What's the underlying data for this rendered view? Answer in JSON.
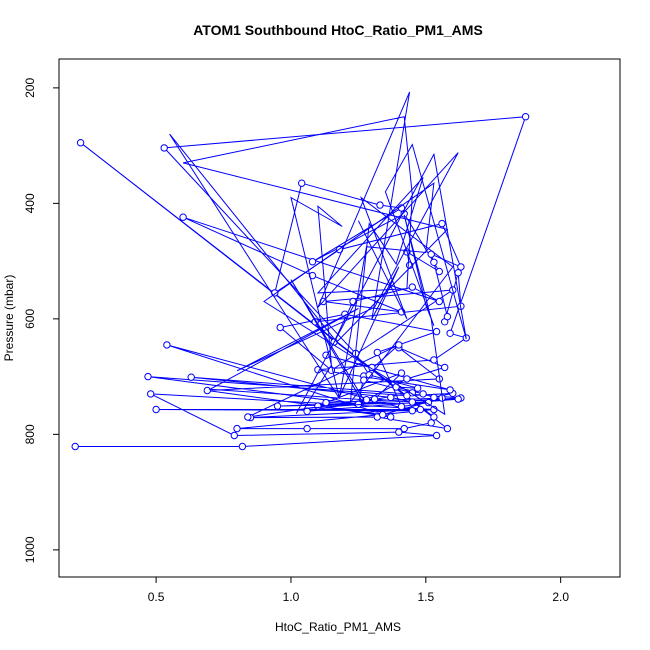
{
  "chart_data": {
    "type": "line",
    "title": "ATOM1 Southbound HtoC_Ratio_PM1_AMS",
    "xlabel": "HtoC_Ratio_PM1_AMS",
    "ylabel": "Pressure (mbar)",
    "xlim": [
      0.14,
      2.22
    ],
    "ylim": [
      1047,
      150
    ],
    "y_inverted": true,
    "x_ticks": [
      0.5,
      1.0,
      1.5,
      2.0
    ],
    "x_tick_labels": [
      "0.5",
      "1.0",
      "1.5",
      "2.0"
    ],
    "y_ticks": [
      200,
      400,
      600,
      800,
      1000
    ],
    "y_tick_labels": [
      "200",
      "400",
      "600",
      "800",
      "1000"
    ],
    "grid": false,
    "series": [
      {
        "marker": "open-circle",
        "line_style": "solid",
        "color": "#0000ff",
        "x_values": [
          0.2,
          0.82,
          1.54,
          1.4,
          0.79,
          0.48,
          1.53,
          0.8,
          1.06,
          1.42,
          1.52,
          1.53,
          0.22,
          1.58,
          1.32,
          0.85,
          1.48,
          0.5,
          1.45,
          0.54,
          1.37,
          1.1,
          1.63,
          0.63,
          1.37,
          1.45,
          1.31,
          1.41,
          1.13,
          1.56,
          1.34,
          0.69,
          1.55,
          1.4,
          1.57,
          1.43,
          1.28,
          0.84,
          1.4,
          1.27,
          1.25,
          0.47,
          1.43,
          1.6,
          1.53,
          1.49,
          1.39,
          1.47,
          1.29,
          1.24,
          0.53,
          1.87,
          1.59,
          1.65,
          1.53,
          1.1,
          1.59,
          1.13,
          1.3,
          1.27,
          1.45,
          1.06,
          1.62,
          0.95,
          1.51,
          1.41,
          1.32,
          1.54,
          1.2,
          0.96,
          1.15,
          1.6,
          1.12,
          1.41,
          1.08,
          0.6,
          1.55,
          1.45,
          1.23,
          1.16,
          1.09,
          1.63,
          1.62,
          1.57,
          1.58,
          1.53,
          1.52,
          1.63,
          1.56,
          1.18,
          0.94,
          1.04,
          1.33,
          1.41,
          1.08,
          1.42,
          1.55,
          1.43,
          1.44
        ],
        "y_values": [
          821,
          821,
          802,
          796,
          802,
          730,
          757,
          790,
          790,
          790,
          780,
          770,
          295,
          790,
          770,
          771,
          757,
          757,
          759,
          645,
          770,
          751,
          737,
          701,
          736,
          744,
          739,
          694,
          745,
          737,
          766,
          724,
          704,
          650,
          684,
          704,
          740,
          770,
          645,
          699,
          748,
          700,
          733,
          729,
          736,
          730,
          718,
          720,
          697,
          660,
          304,
          250,
          625,
          633,
          671,
          688,
          723,
          663,
          684,
          706,
          728,
          760,
          739,
          751,
          745,
          752,
          658,
          622,
          592,
          615,
          689,
          550,
          570,
          588,
          525,
          424,
          570,
          545,
          570,
          640,
          605,
          578,
          520,
          605,
          596,
          502,
          488,
          510,
          435,
          480,
          555,
          365,
          403,
          408,
          501,
          418,
          518,
          484,
          507
        ]
      },
      {
        "marker": "none",
        "line_style": "solid",
        "color": "#0000ff",
        "x_values": [
          1.02,
          1.53,
          1.65,
          1.45,
          1.35,
          1.53,
          1.5,
          1.42,
          1.52,
          1.57,
          0.9,
          1.53,
          1.5,
          1.28,
          1.18,
          1.4,
          1.3,
          1.44,
          1.1,
          1.62,
          1.31,
          0.8,
          1.25,
          0.7,
          1.27,
          1.0,
          1.27,
          1.05,
          1.15,
          1.1,
          1.19,
          1.0,
          1.18,
          0.55,
          1.17,
          1.58,
          0.6,
          1.42,
          1.45,
          1.43,
          1.1,
          1.49,
          1.39,
          1.29,
          1.22,
          1.6,
          1.26,
          1.43,
          1.25
        ],
        "y_values": [
          764,
          315,
          635,
          298,
          380,
          612,
          576,
          420,
          600,
          765,
          570,
          365,
          485,
          475,
          735,
          510,
          600,
          207,
          580,
          312,
          580,
          690,
          582,
          722,
          740,
          532,
          748,
          755,
          680,
          405,
          440,
          390,
          738,
          280,
          640,
          445,
          330,
          250,
          385,
          548,
          555,
          355,
          505,
          435,
          745,
          510,
          390,
          600,
          430
        ]
      }
    ]
  }
}
